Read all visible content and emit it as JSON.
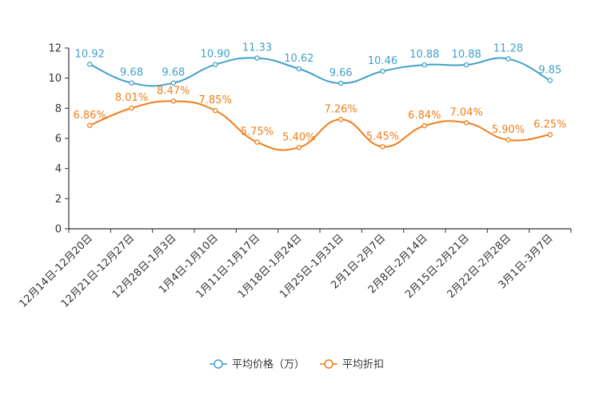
{
  "chart_data": {
    "type": "line",
    "title": "",
    "xlabel": "",
    "ylabel": "",
    "ylim": [
      0,
      12
    ],
    "yticks": [
      0,
      2,
      4,
      6,
      8,
      10,
      12
    ],
    "categories": [
      "12月14日-12月20日",
      "12月21日-12月27日",
      "12月28日-1月3日",
      "1月4日-1月10日",
      "1月11日-1月17日",
      "1月18日-1月24日",
      "1月25日-1月31日",
      "2月1日-2月7日",
      "2月8日-2月14日",
      "2月15日-2月21日",
      "2月22日-2月28日",
      "3月1日-3月7日"
    ],
    "series": [
      {
        "name": "平均价格（万）",
        "color": "#3fa0c9",
        "values": [
          10.92,
          9.68,
          9.68,
          10.9,
          11.33,
          10.62,
          9.66,
          10.46,
          10.88,
          10.88,
          11.28,
          9.85
        ],
        "labels": [
          "10.92",
          "9.68",
          "9.68",
          "10.90",
          "11.33",
          "10.62",
          "9.66",
          "10.46",
          "10.88",
          "10.88",
          "11.28",
          "9.85"
        ]
      },
      {
        "name": "平均折扣",
        "color": "#f07d1a",
        "values": [
          6.86,
          8.01,
          8.47,
          7.85,
          5.75,
          5.4,
          7.26,
          5.45,
          6.84,
          7.04,
          5.9,
          6.25
        ],
        "labels": [
          "6.86%",
          "8.01%",
          "8.47%",
          "7.85%",
          "5.75%",
          "5.40%",
          "7.26%",
          "5.45%",
          "6.84%",
          "7.04%",
          "5.90%",
          "6.25%"
        ]
      }
    ],
    "legend_position": "bottom-center"
  }
}
